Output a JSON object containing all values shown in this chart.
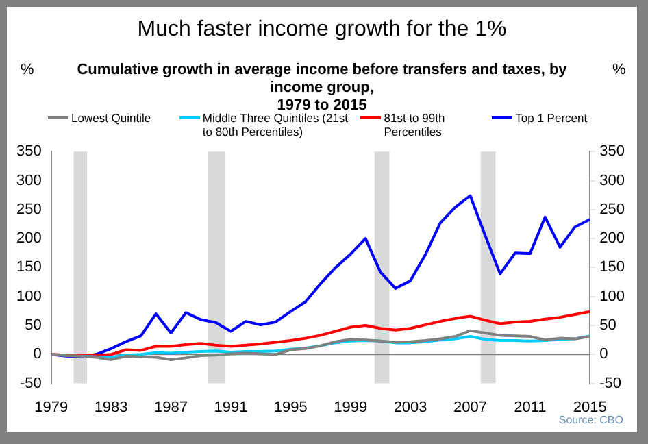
{
  "chart_data": {
    "type": "line",
    "title": "Much faster income growth for the 1%",
    "subtitle": "Cumulative growth in average income before transfers and taxes, by income group,\n1979 to 2015",
    "ylabel": "%",
    "y2label": "%",
    "x": [
      1979,
      1980,
      1981,
      1982,
      1983,
      1984,
      1985,
      1986,
      1987,
      1988,
      1989,
      1990,
      1991,
      1992,
      1993,
      1994,
      1995,
      1996,
      1997,
      1998,
      1999,
      2000,
      2001,
      2002,
      2003,
      2004,
      2005,
      2006,
      2007,
      2008,
      2009,
      2010,
      2011,
      2012,
      2013,
      2014,
      2015
    ],
    "xlim": [
      1979,
      2015
    ],
    "xticks": [
      1979,
      1983,
      1987,
      1991,
      1995,
      1999,
      2003,
      2007,
      2011,
      2015
    ],
    "ylim": [
      -50,
      350
    ],
    "yticks": [
      -50,
      0,
      50,
      100,
      150,
      200,
      250,
      300,
      350
    ],
    "y2lim": [
      -50,
      350
    ],
    "y2ticks": [
      -50,
      0,
      50,
      100,
      150,
      200,
      250,
      300,
      350
    ],
    "series": [
      {
        "name": "Lowest Quintile",
        "color": "#808080",
        "values": [
          0,
          -2,
          -3,
          -5,
          -9,
          -3,
          -4,
          -5,
          -9,
          -6,
          -2,
          -1,
          1,
          2,
          1,
          0,
          8,
          10,
          15,
          22,
          26,
          25,
          23,
          21,
          22,
          24,
          27,
          31,
          41,
          37,
          33,
          32,
          31,
          25,
          28,
          27,
          31
        ]
      },
      {
        "name": "Middle Three Quintiles (21st to 80th Percentiles)",
        "color": "#00ccff",
        "values": [
          null,
          null,
          -3,
          -4,
          -5,
          -1,
          0,
          3,
          2,
          4,
          5,
          6,
          4,
          5,
          5,
          6,
          9,
          11,
          15,
          20,
          23,
          24,
          23,
          20,
          20,
          22,
          25,
          27,
          31,
          26,
          24,
          24,
          23,
          24,
          26,
          27,
          32
        ]
      },
      {
        "name": "81st to 99th Percentiles",
        "color": "#ff0000",
        "values": [
          0,
          -1,
          -2,
          -2,
          0,
          8,
          7,
          14,
          14,
          17,
          19,
          16,
          14,
          16,
          18,
          21,
          24,
          28,
          33,
          40,
          47,
          50,
          45,
          42,
          45,
          51,
          57,
          62,
          66,
          59,
          53,
          56,
          57,
          61,
          64,
          69,
          74
        ]
      },
      {
        "name": "Top 1 Percent",
        "color": "#0000ff",
        "values": [
          0,
          -3,
          -4,
          0,
          10,
          22,
          32,
          70,
          37,
          72,
          60,
          55,
          40,
          57,
          51,
          56,
          74,
          91,
          122,
          150,
          173,
          200,
          142,
          114,
          127,
          172,
          227,
          254,
          274,
          205,
          139,
          175,
          174,
          237,
          185,
          220,
          233
        ]
      }
    ],
    "bands": [
      {
        "axis": "x",
        "from": 1980.5,
        "to": 1981.4,
        "color": "#d9d9d9"
      },
      {
        "axis": "x",
        "from": 1989.5,
        "to": 1990.6,
        "color": "#d9d9d9"
      },
      {
        "axis": "x",
        "from": 2000.6,
        "to": 2001.6,
        "color": "#d9d9d9"
      },
      {
        "axis": "x",
        "from": 2007.7,
        "to": 2008.7,
        "color": "#d9d9d9"
      }
    ],
    "ref_lines": [
      {
        "axis": "y",
        "value": 0,
        "color": "#808080"
      }
    ],
    "legend": "top",
    "grid": false,
    "marker": "none",
    "line_style": "solid",
    "annotations": [
      "Source: CBO"
    ]
  }
}
